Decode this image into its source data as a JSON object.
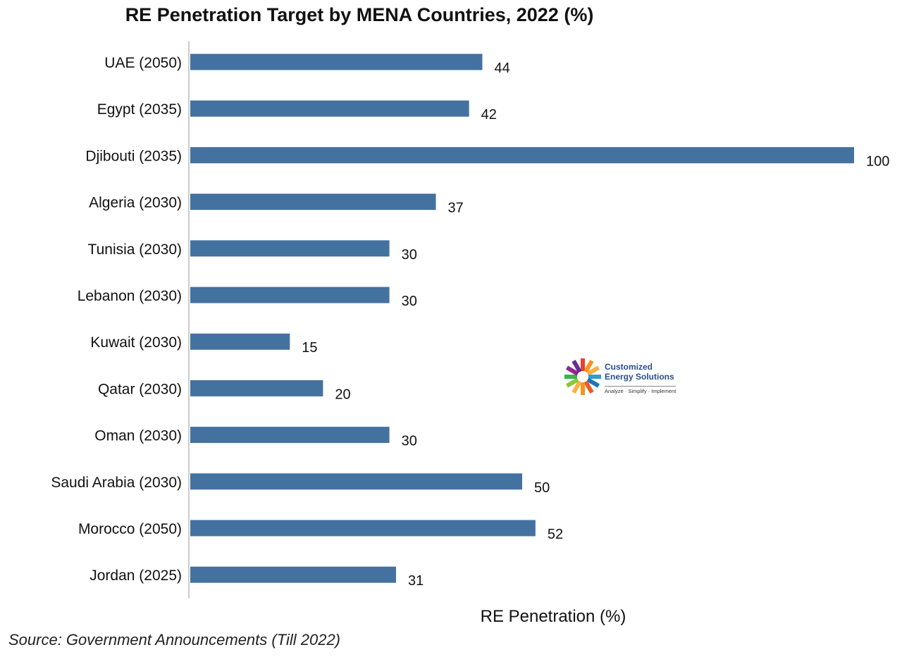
{
  "chart_data": {
    "type": "bar",
    "orientation": "horizontal",
    "title": "RE Penetration Target by MENA Countries, 2022 (%)",
    "xlabel": "RE Penetration (%)",
    "ylabel": "",
    "categories": [
      "UAE (2050)",
      "Egypt (2035)",
      "Djibouti (2035)",
      "Algeria (2030)",
      "Tunisia (2030)",
      "Lebanon (2030)",
      "Kuwait (2030)",
      "Qatar (2030)",
      "Oman (2030)",
      "Saudi Arabia (2030)",
      "Morocco (2050)",
      "Jordan (2025)"
    ],
    "values": [
      44,
      42,
      100,
      37,
      30,
      30,
      15,
      20,
      30,
      50,
      52,
      31
    ],
    "xlim": [
      0,
      100
    ],
    "grid": false,
    "legend": "none",
    "bar_color": "#4472a0"
  },
  "footer": {
    "source": "Source: Government Announcements (Till 2022)"
  },
  "logo": {
    "line1": "Customized",
    "line2": "Energy Solutions",
    "tagline": "Analyze · Simplify · Implement"
  }
}
